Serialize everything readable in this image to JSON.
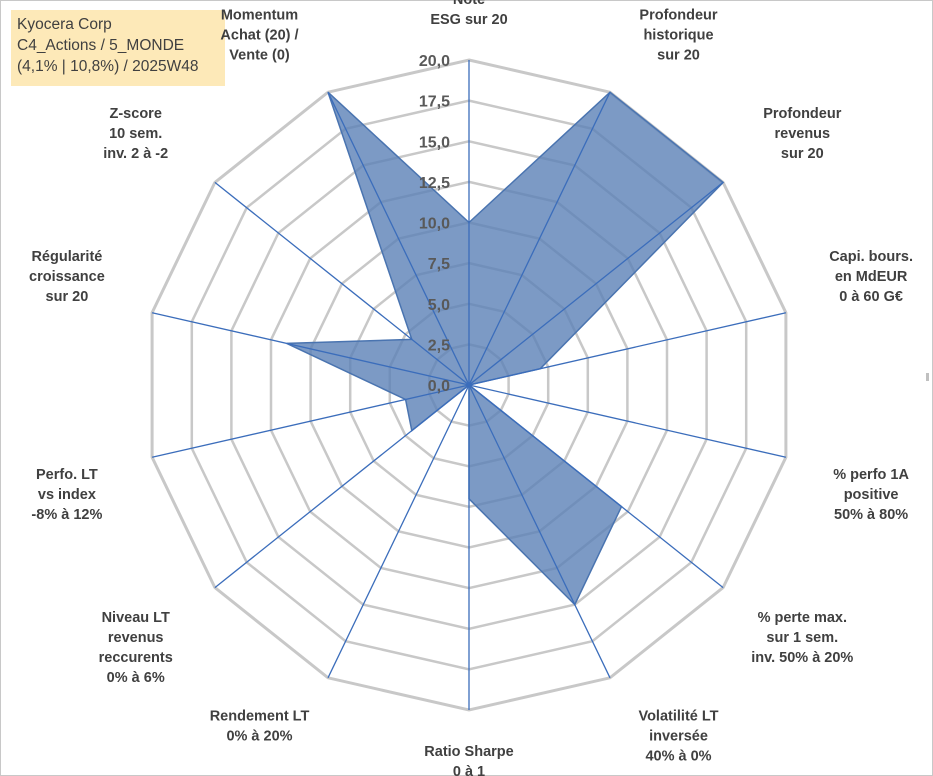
{
  "info_box": {
    "line1": "Kyocera Corp",
    "line2": "C4_Actions / 5_MONDE",
    "line3": "(4,1% | 10,8%) / 2025W48"
  },
  "chart_data": {
    "type": "radar",
    "title": "",
    "rmax": 20,
    "tick_values": [
      0,
      2.5,
      5,
      7.5,
      10,
      12.5,
      15,
      17.5,
      20
    ],
    "tick_labels": [
      "0,0",
      "2,5",
      "5,0",
      "7,5",
      "10,0",
      "12,5",
      "15,0",
      "17,5",
      "20,0"
    ],
    "axes": [
      [
        "Note",
        "ESG sur 20"
      ],
      [
        "Profondeur",
        "historique",
        "sur 20"
      ],
      [
        "Profondeur",
        "revenus",
        "sur 20"
      ],
      [
        "Capi. bours.",
        "en MdEUR",
        "0 à 60 G€"
      ],
      [
        "% perfo 1A",
        "positive",
        "50% à 80%"
      ],
      [
        "% perte max.",
        "sur 1 sem.",
        "inv. 50% à 20%"
      ],
      [
        "Volatilité LT",
        "inversée",
        "40% à 0%"
      ],
      [
        "Ratio Sharpe",
        "0 à 1"
      ],
      [
        "Rendement LT",
        "0% à 20%"
      ],
      [
        "Niveau LT",
        "revenus",
        "reccurents",
        "0% à 6%"
      ],
      [
        "Perfo. LT",
        "vs index",
        "-8% à 12%"
      ],
      [
        "Régularité",
        "croissance",
        "sur 20"
      ],
      [
        "Z-score",
        "10 sem.",
        "inv. 2 à -2"
      ],
      [
        "Momentum",
        "Achat (20) /",
        "Vente (0)"
      ]
    ],
    "series": [
      {
        "values": [
          10.0,
          20.0,
          20.0,
          4.5,
          0.0,
          12.0,
          15.0,
          7.0,
          0.0,
          4.5,
          4.0,
          11.5,
          4.5,
          20.0
        ]
      }
    ],
    "colors": {
      "fill": "#5b81b7",
      "fill_opacity": 0.8,
      "series_line": "#4a74b0",
      "spokes": "#3b6dbb",
      "grid": "#c8c8c8"
    },
    "grid": true,
    "legend": "none"
  }
}
